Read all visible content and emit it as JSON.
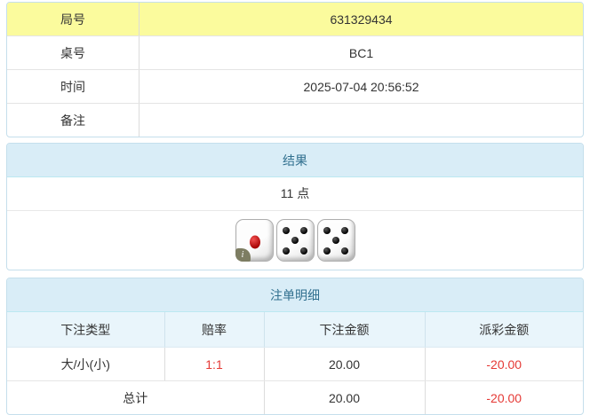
{
  "info_table": {
    "rows": [
      {
        "label": "局号",
        "value": "631329434",
        "highlight": true
      },
      {
        "label": "桌号",
        "value": "BC1",
        "highlight": false
      },
      {
        "label": "时间",
        "value": "2025-07-04 20:56:52",
        "highlight": false
      },
      {
        "label": "备注",
        "value": "",
        "highlight": false
      }
    ]
  },
  "result_panel": {
    "title": "结果",
    "points": "11 点",
    "dice": [
      1,
      5,
      5
    ],
    "info_badge": "i"
  },
  "bet_panel": {
    "title": "注单明细",
    "columns": [
      "下注类型",
      "赔率",
      "下注金额",
      "派彩金额"
    ],
    "rows": [
      {
        "type": "大/小(小)",
        "odds": "1:1",
        "amount": "20.00",
        "payout": "-20.00"
      }
    ],
    "total": {
      "label": "总计",
      "amount": "20.00",
      "payout": "-20.00"
    }
  },
  "colors": {
    "highlight_row_bg": "#fbfb9d",
    "panel_border": "#c5dfec",
    "panel_heading_bg": "#d9edf7",
    "panel_heading_text": "#31708f",
    "table_header_bg": "#e9f5fb",
    "negative_text": "#e53935",
    "die_red_dot": "#a40000"
  }
}
